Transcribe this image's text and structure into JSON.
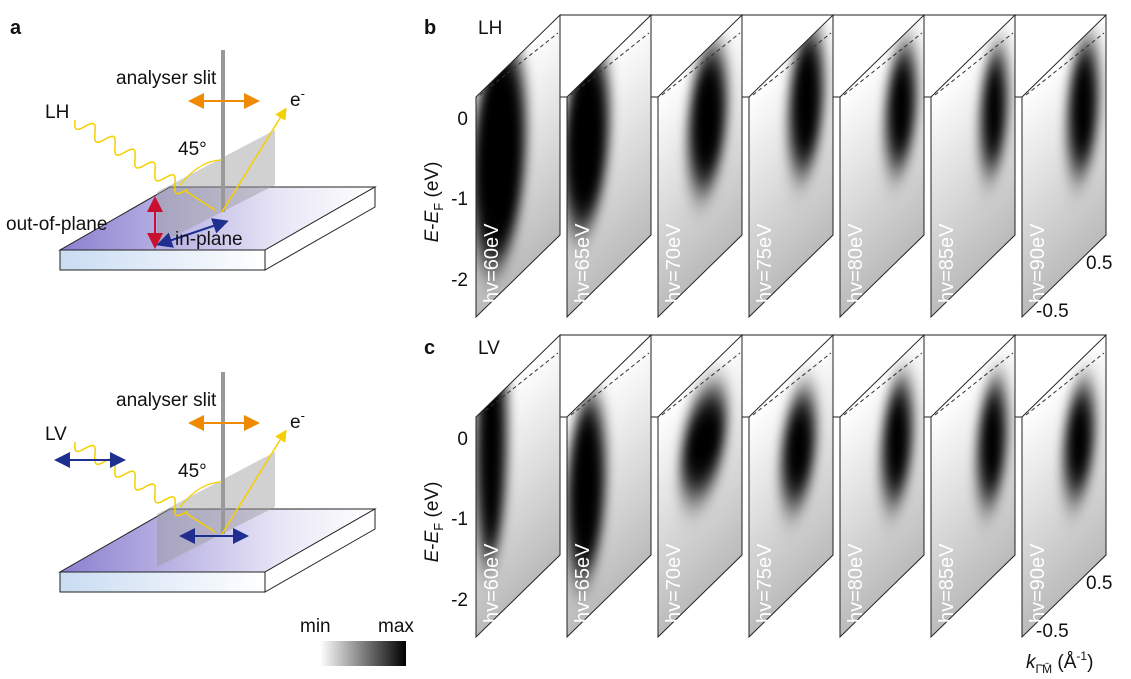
{
  "panel_a": {
    "label": "a",
    "top": {
      "beam": "LH",
      "slit": "analyser slit",
      "electron": "e",
      "electron_sup": "-",
      "angle": "45°",
      "out_of_plane": "out-of-plane",
      "in_plane": "in-plane"
    },
    "bottom": {
      "beam": "LV",
      "slit": "analyser slit",
      "electron": "e",
      "electron_sup": "-",
      "angle": "45°"
    }
  },
  "colorbar": {
    "min": "min",
    "max": "max"
  },
  "panels": [
    {
      "label": "b",
      "polarization": "LH",
      "energies": [
        "hv=60eV",
        "hv=65eV",
        "hv=70eV",
        "hv=75eV",
        "hv=80eV",
        "hv=85eV",
        "hv=90eV"
      ],
      "y_label": {
        "e1": "E",
        "dash": "-",
        "e2": "E",
        "sub": "F",
        "unit": " (eV)"
      },
      "yticks": [
        "0",
        "-1",
        "-2"
      ],
      "kticks": [
        "0.5",
        "-0.5"
      ]
    },
    {
      "label": "c",
      "polarization": "LV",
      "energies": [
        "hv=60eV",
        "hv=65eV",
        "hv=70eV",
        "hv=75eV",
        "hv=80eV",
        "hv=85eV",
        "hv=90eV"
      ],
      "y_label": {
        "e1": "E",
        "dash": "-",
        "e2": "E",
        "sub": "F",
        "unit": " (eV)"
      },
      "yticks": [
        "0",
        "-1",
        "-2"
      ],
      "kticks": [
        "0.5",
        "-0.5"
      ]
    }
  ],
  "k_label": {
    "main": "k",
    "sub": "Γ̄M̄",
    "unit_open": " (Å",
    "unit_sup": "-1",
    "unit_close": ")"
  }
}
